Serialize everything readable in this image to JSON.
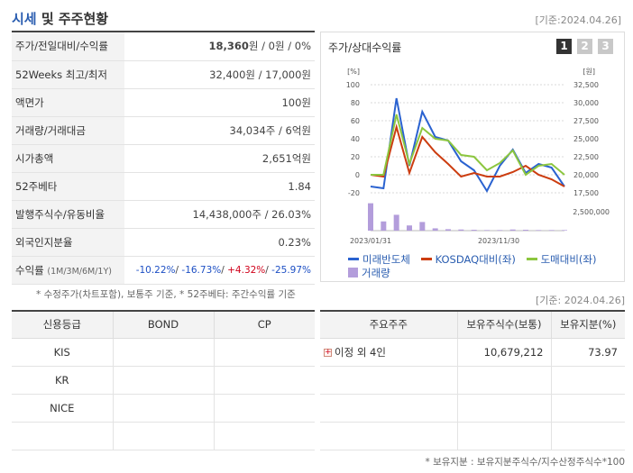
{
  "header": {
    "title_a": "시세",
    "title_b": " 및 주주현황",
    "date": "[기준:2024.04.26]"
  },
  "quote_rows": [
    {
      "k": "주가/전일대비/수익률",
      "v": "",
      "price": "18,360",
      "rest": "원 / 0원 / 0%"
    },
    {
      "k": "52Weeks 최고/최저",
      "v": "32,400원 / 17,000원"
    },
    {
      "k": "액면가",
      "v": "100원"
    },
    {
      "k": "거래량/거래대금",
      "v": "34,034주 / 6억원"
    },
    {
      "k": "시가총액",
      "v": "2,651억원"
    },
    {
      "k": "52주베타",
      "v": "1.84"
    },
    {
      "k": "발행주식수/유동비율",
      "v": "14,438,000주 / 26.03%"
    },
    {
      "k": "외국인지분율",
      "v": "0.23%"
    }
  ],
  "returns": {
    "label": "수익률",
    "sub": "(1M/3M/6M/1Y)",
    "r1": "-10.22%",
    "r2": "-16.73%",
    "r3": "+4.32%",
    "r4": "-25.97%",
    "sep": "/ "
  },
  "note1": "* 수정주가(차트포함), 보통주 기준, * 52주베타: 주간수익률 기준",
  "chart_box": {
    "title": "주가/상대수익률",
    "tabs": [
      "1",
      "2",
      "3"
    ],
    "legend": {
      "s1": "미래반도체",
      "s2": "KOSDAQ대비(좌)",
      "s3": "도매대비(좌)",
      "s4": "거래량"
    }
  },
  "chart_data": {
    "type": "line",
    "left_unit": "[%]",
    "right_unit": "[원]",
    "left_ticks": [
      "100",
      "80",
      "60",
      "40",
      "20",
      "0",
      "-20"
    ],
    "right_ticks": [
      "32,500",
      "30,000",
      "27,500",
      "25,000",
      "22,500",
      "20,000",
      "17,500"
    ],
    "vol_tick": "2,500,000",
    "x_labels": [
      "2023/01/31",
      "2023/11/30"
    ],
    "series": [
      {
        "name": "미래반도체",
        "color": "#2a62d0",
        "values": [
          -13,
          -15,
          85,
          10,
          70,
          42,
          38,
          15,
          5,
          -18,
          10,
          28,
          2,
          12,
          8,
          -13
        ]
      },
      {
        "name": "KOSDAQ대비(좌)",
        "color": "#cc3d10",
        "values": [
          0,
          -2,
          53,
          2,
          42,
          25,
          12,
          -2,
          2,
          -2,
          -2,
          3,
          10,
          0,
          -5,
          -13
        ]
      },
      {
        "name": "도매대비(좌)",
        "color": "#8cc63f",
        "values": [
          0,
          0,
          67,
          12,
          52,
          40,
          38,
          22,
          20,
          5,
          13,
          27,
          0,
          10,
          12,
          0
        ]
      }
    ],
    "volume": {
      "name": "거래량",
      "color": "#b39ddb",
      "values": [
        0.95,
        0.32,
        0.55,
        0.18,
        0.3,
        0.08,
        0.05,
        0.04,
        0.03,
        0.02,
        0.02,
        0.04,
        0.03,
        0.02,
        0.02,
        0.02
      ]
    }
  },
  "date2": "[기준: 2024.04.26]",
  "credit": {
    "headers": [
      "신용등급",
      "BOND",
      "CP"
    ],
    "rows": [
      [
        "KIS",
        "",
        ""
      ],
      [
        "KR",
        "",
        ""
      ],
      [
        "NICE",
        "",
        ""
      ],
      [
        "",
        "",
        ""
      ]
    ]
  },
  "holders": {
    "headers": [
      "주요주주",
      "보유주식수(보통)",
      "보유지분(%)"
    ],
    "rows": [
      {
        "name": "이정 외 4인",
        "shares": "10,679,212",
        "pct": "73.97",
        "expand": "+"
      },
      {
        "name": "",
        "shares": "",
        "pct": ""
      },
      {
        "name": "",
        "shares": "",
        "pct": ""
      },
      {
        "name": "",
        "shares": "",
        "pct": ""
      }
    ]
  },
  "note2": "* 보유지분 : 보유지분주식수/지수산정주식수*100"
}
